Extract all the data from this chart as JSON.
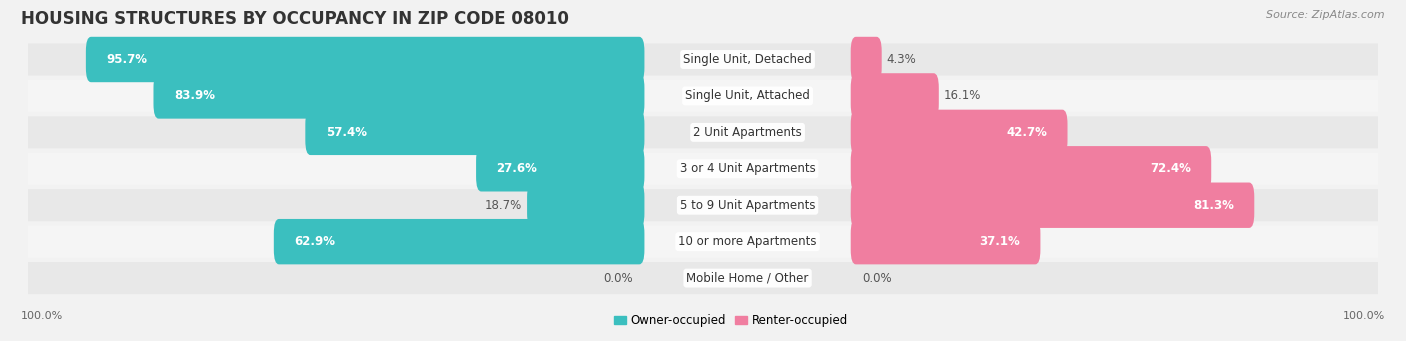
{
  "title": "HOUSING STRUCTURES BY OCCUPANCY IN ZIP CODE 08010",
  "source": "Source: ZipAtlas.com",
  "categories": [
    "Single Unit, Detached",
    "Single Unit, Attached",
    "2 Unit Apartments",
    "3 or 4 Unit Apartments",
    "5 to 9 Unit Apartments",
    "10 or more Apartments",
    "Mobile Home / Other"
  ],
  "owner_pct": [
    95.7,
    83.9,
    57.4,
    27.6,
    18.7,
    62.9,
    0.0
  ],
  "renter_pct": [
    4.3,
    16.1,
    42.7,
    72.4,
    81.3,
    37.1,
    0.0
  ],
  "owner_color": "#3BBFBF",
  "renter_color": "#F07EA0",
  "bg_color": "#f2f2f2",
  "row_bg_even": "#e8e8e8",
  "row_bg_odd": "#f5f5f5",
  "title_fontsize": 12,
  "label_fontsize": 8.5,
  "source_fontsize": 8,
  "bar_label_fontsize": 8.5
}
